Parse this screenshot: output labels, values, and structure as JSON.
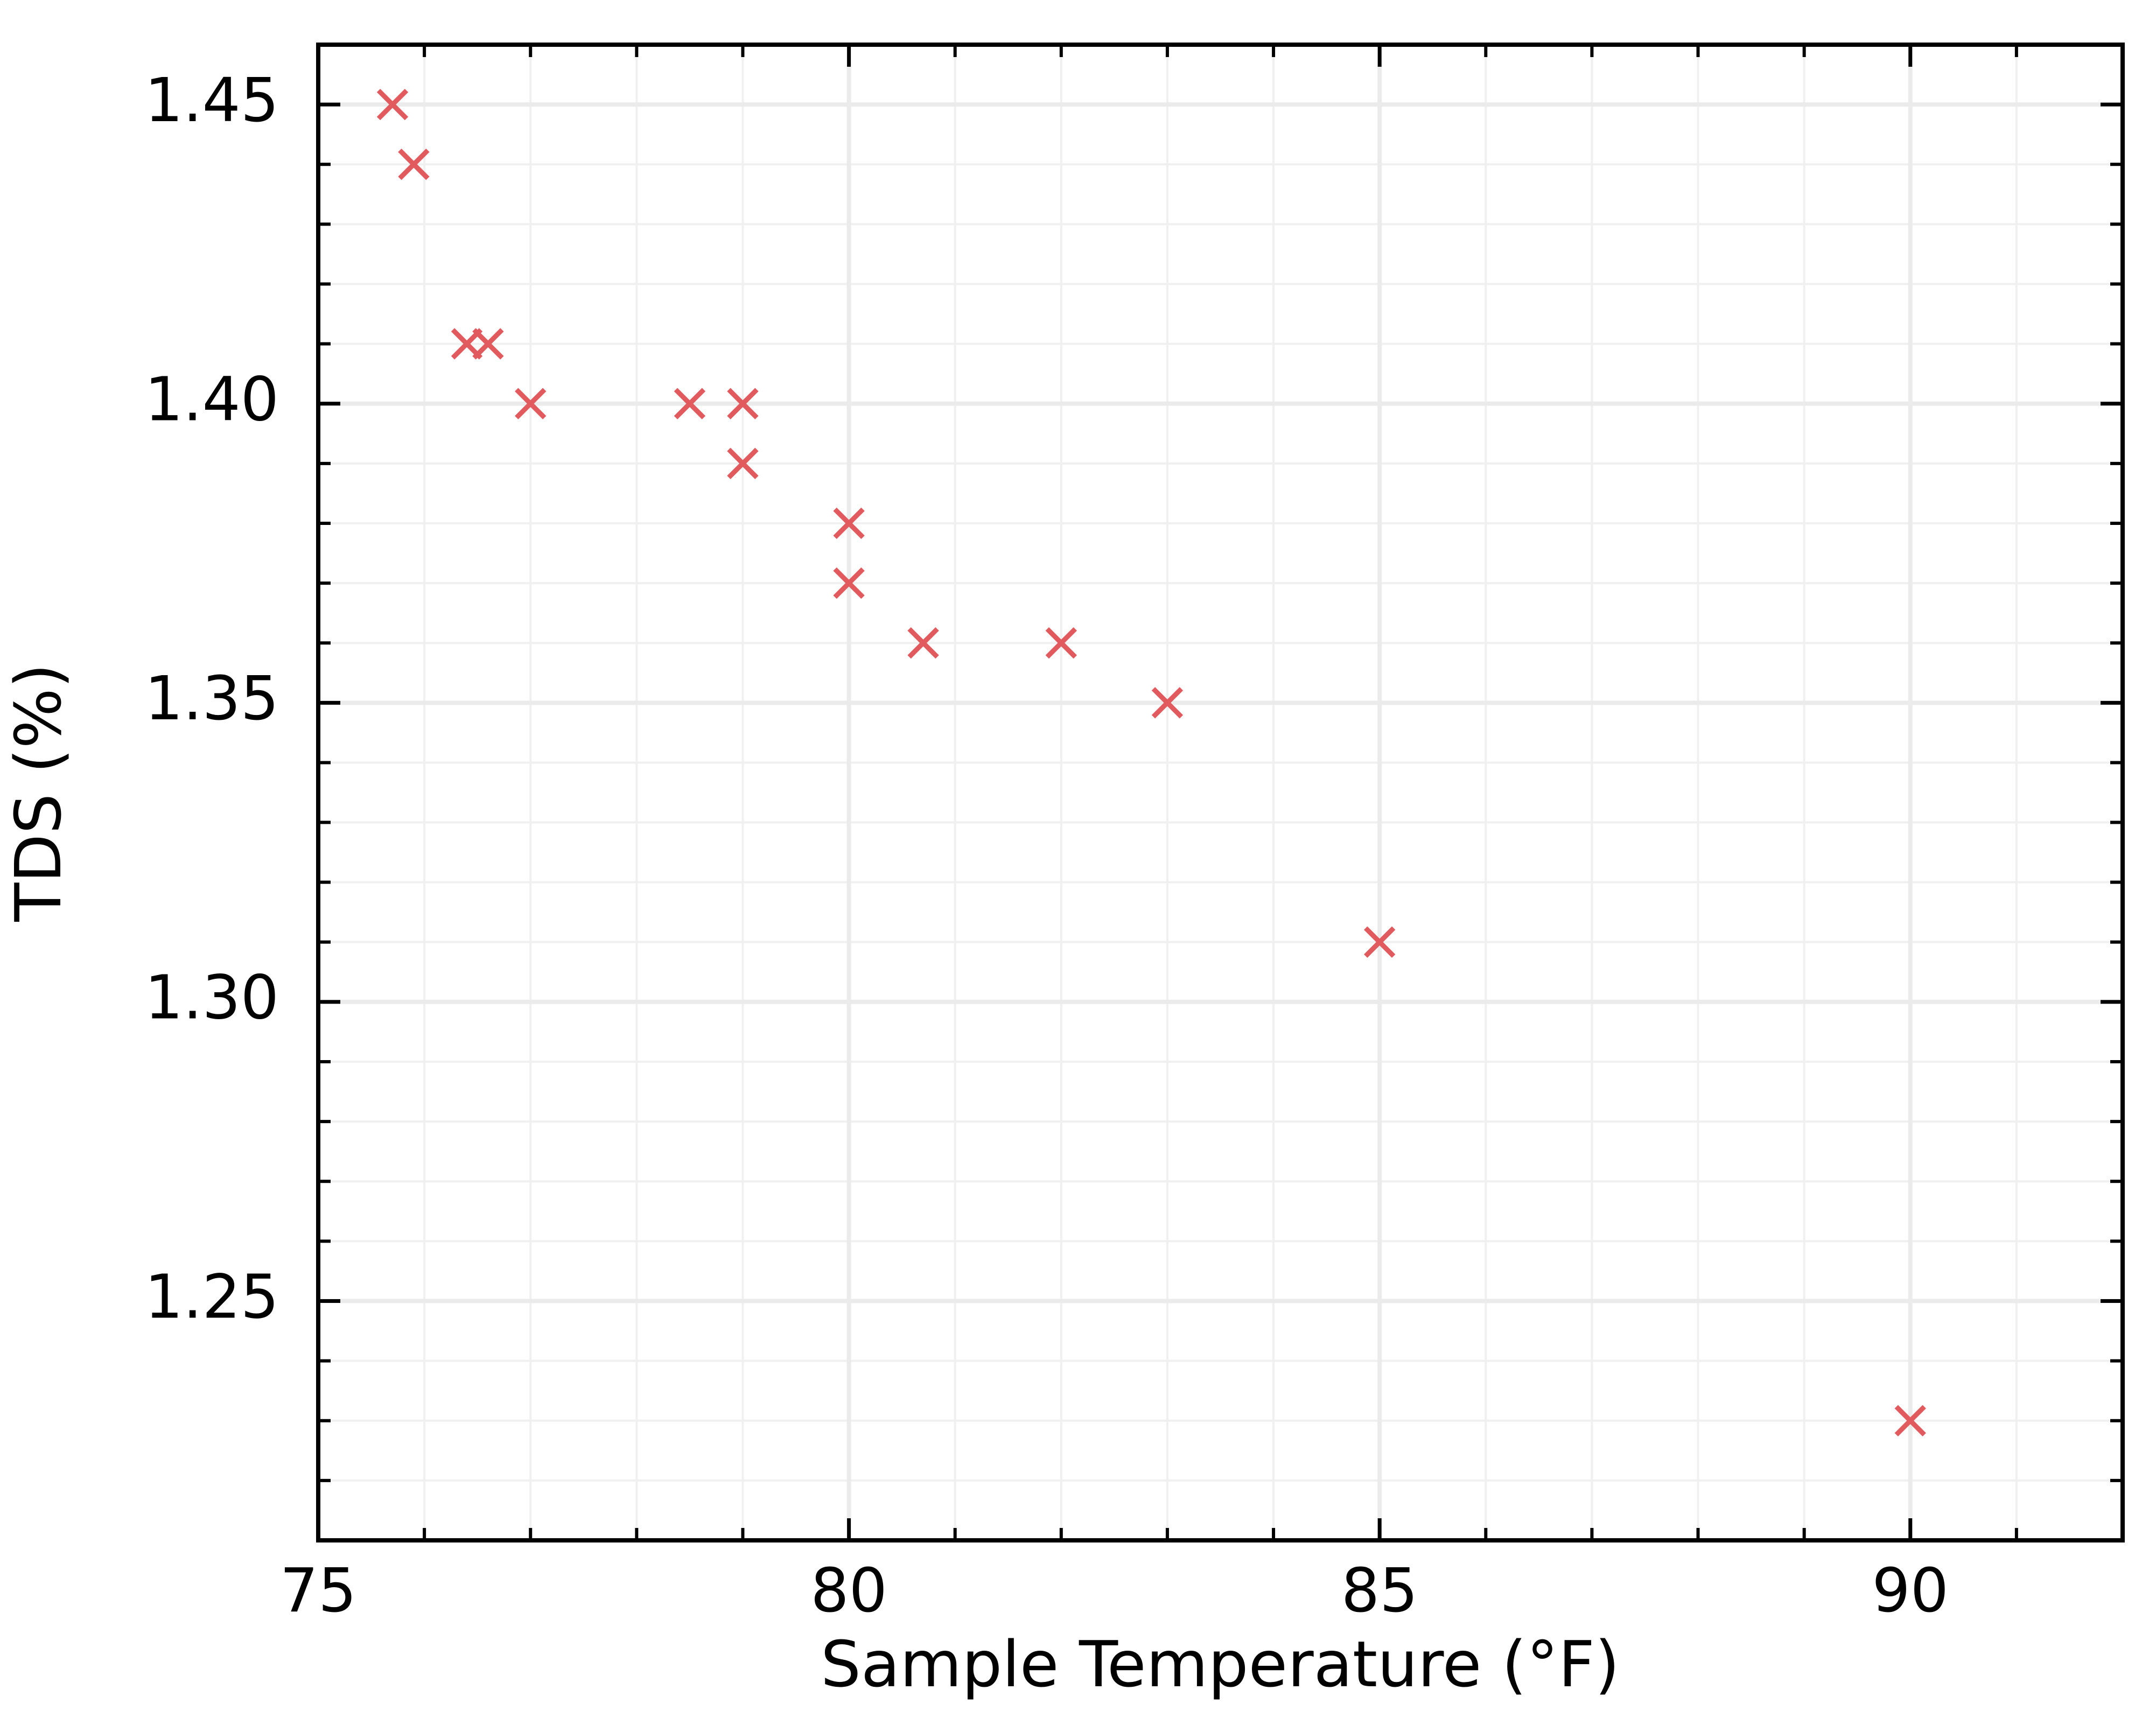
{
  "chart_data": {
    "type": "scatter",
    "marker": "x",
    "color": "#e05a5e",
    "xlabel": "Sample Temperature (°F)",
    "ylabel": "TDS (%)",
    "x": [
      75.7,
      75.9,
      76.4,
      76.6,
      77,
      78.5,
      79,
      79,
      80,
      80,
      80.7,
      82,
      83,
      85,
      90
    ],
    "values": [
      1.45,
      1.44,
      1.41,
      1.41,
      1.4,
      1.4,
      1.4,
      1.39,
      1.38,
      1.37,
      1.36,
      1.36,
      1.35,
      1.31,
      1.23
    ],
    "xlim": [
      75,
      92
    ],
    "ylim": [
      1.21,
      1.46
    ],
    "xticks": [
      75,
      80,
      85,
      90
    ],
    "yticks": [
      {
        "value": 1.25,
        "label": "1.25"
      },
      {
        "value": 1.3,
        "label": "1.30"
      },
      {
        "value": 1.35,
        "label": "1.35"
      },
      {
        "value": 1.4,
        "label": "1.40"
      },
      {
        "value": 1.45,
        "label": "1.45"
      }
    ],
    "xminorticks": [
      76,
      77,
      78,
      79,
      81,
      82,
      83,
      84,
      86,
      87,
      88,
      89,
      91
    ],
    "yminorticks": [
      1.22,
      1.23,
      1.24,
      1.26,
      1.27,
      1.28,
      1.29,
      1.31,
      1.32,
      1.33,
      1.34,
      1.36,
      1.37,
      1.38,
      1.39,
      1.41,
      1.42,
      1.43,
      1.44
    ],
    "grid": true
  }
}
